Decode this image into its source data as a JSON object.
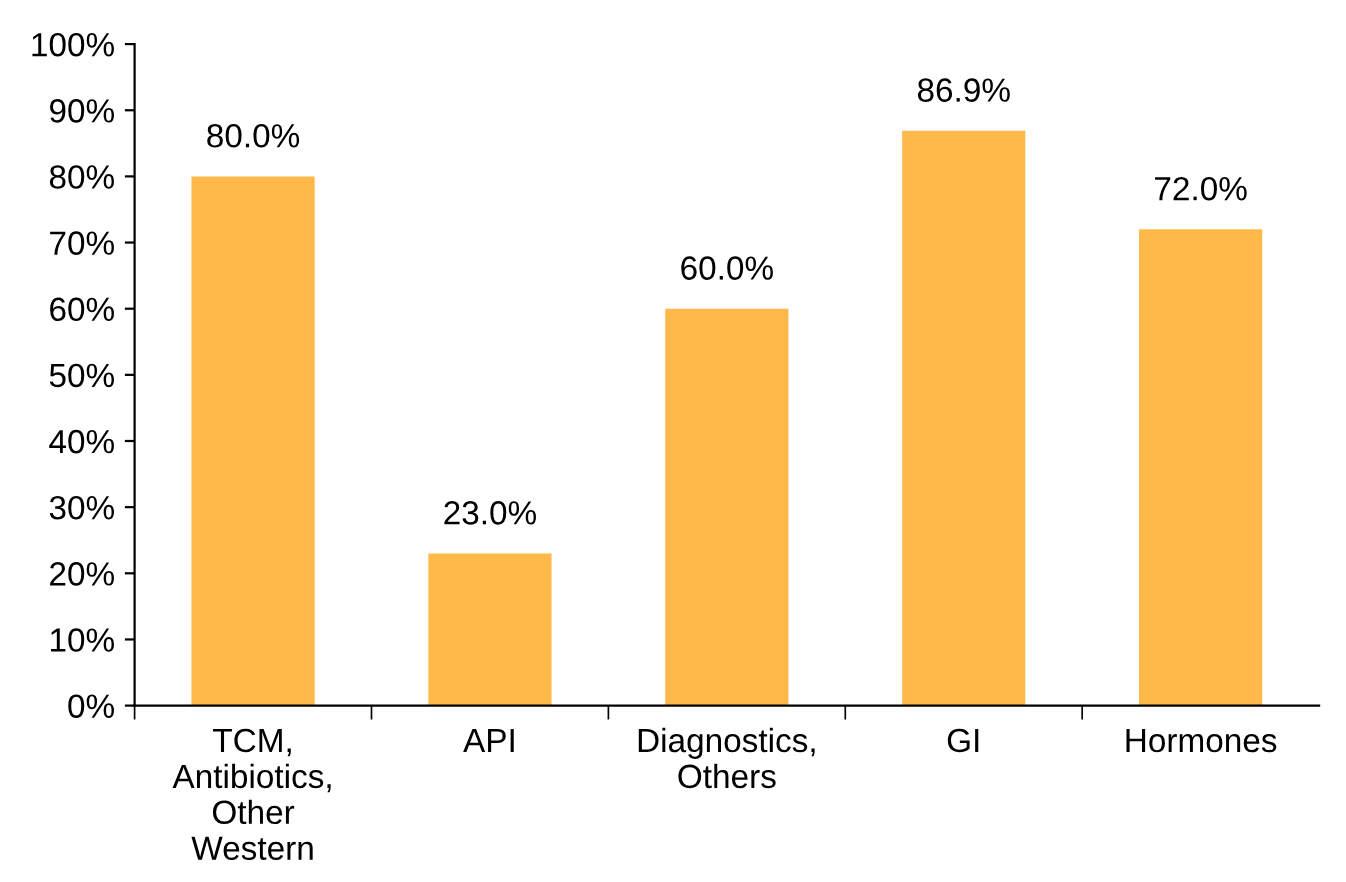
{
  "chart_data": {
    "type": "bar",
    "categories": [
      "TCM,\nAntibiotics,\nOther\nWestern",
      "API",
      "Diagnostics,\nOthers",
      "GI",
      "Hormones"
    ],
    "values": [
      80.0,
      23.0,
      60.0,
      86.9,
      72.0
    ],
    "value_labels": [
      "80.0%",
      "23.0%",
      "60.0%",
      "86.9%",
      "72.0%"
    ],
    "color": "#ffb84a",
    "ylim": [
      0,
      100
    ],
    "yticks": [
      {
        "value": 0,
        "label": "0%"
      },
      {
        "value": 10,
        "label": "10%"
      },
      {
        "value": 20,
        "label": "20%"
      },
      {
        "value": 30,
        "label": "30%"
      },
      {
        "value": 40,
        "label": "40%"
      },
      {
        "value": 50,
        "label": "50%"
      },
      {
        "value": 60,
        "label": "60%"
      },
      {
        "value": 70,
        "label": "70%"
      },
      {
        "value": 80,
        "label": "80%"
      },
      {
        "value": 90,
        "label": "90%"
      },
      {
        "value": 100,
        "label": "100%"
      }
    ],
    "grid": false,
    "legend": false
  }
}
